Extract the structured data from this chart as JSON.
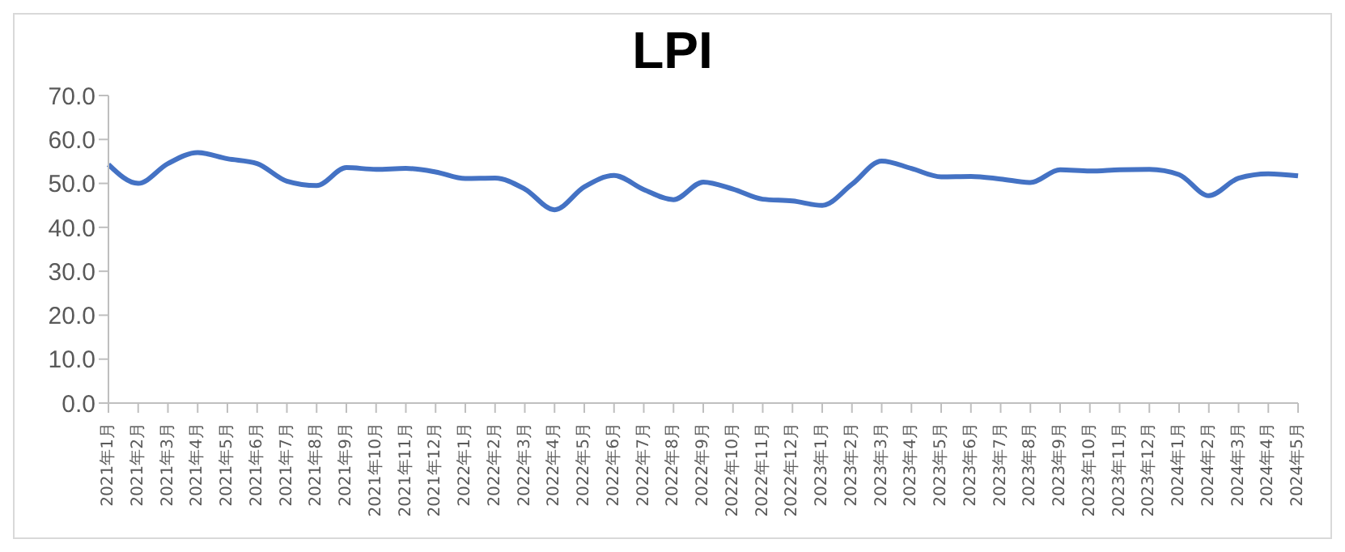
{
  "chart_data": {
    "type": "line",
    "title": "LPI",
    "categories": [
      "2021年1月",
      "2021年2月",
      "2021年3月",
      "2021年4月",
      "2021年5月",
      "2021年6月",
      "2021年7月",
      "2021年8月",
      "2021年9月",
      "2021年10月",
      "2021年11月",
      "2021年12月",
      "2022年1月",
      "2022年2月",
      "2022年3月",
      "2022年4月",
      "2022年5月",
      "2022年6月",
      "2022年7月",
      "2022年8月",
      "2022年9月",
      "2022年10月",
      "2022年11月",
      "2022年12月",
      "2023年1月",
      "2023年2月",
      "2023年3月",
      "2023年4月",
      "2023年5月",
      "2023年6月",
      "2023年7月",
      "2023年8月",
      "2023年9月",
      "2023年10月",
      "2023年11月",
      "2023年12月",
      "2024年1月",
      "2024年2月",
      "2024年3月",
      "2024年4月",
      "2024年5月"
    ],
    "series": [
      {
        "color": "#4472c4",
        "values": [
          54.3,
          50.0,
          54.5,
          57.0,
          55.6,
          54.5,
          50.5,
          49.5,
          53.6,
          53.2,
          53.4,
          52.6,
          51.1,
          51.2,
          48.7,
          44.0,
          49.2,
          51.8,
          48.6,
          46.3,
          50.3,
          48.7,
          46.4,
          46.0,
          45.0,
          49.8,
          55.1,
          53.4,
          51.5,
          51.6,
          51.0,
          50.2,
          53.1,
          52.8,
          53.1,
          53.2,
          52.0,
          47.2,
          51.2,
          52.2,
          51.7
        ]
      }
    ],
    "ylim": [
      0,
      70
    ],
    "yticks": [
      {
        "value": 0,
        "label": "0.0"
      },
      {
        "value": 10,
        "label": "10.0"
      },
      {
        "value": 20,
        "label": "20.0"
      },
      {
        "value": 30,
        "label": "30.0"
      },
      {
        "value": 40,
        "label": "40.0"
      },
      {
        "value": 50,
        "label": "50.0"
      },
      {
        "value": 60,
        "label": "60.0"
      },
      {
        "value": 70,
        "label": "70.0"
      }
    ],
    "grid": false,
    "legend": false,
    "marker": "none",
    "line_style": "solid"
  }
}
